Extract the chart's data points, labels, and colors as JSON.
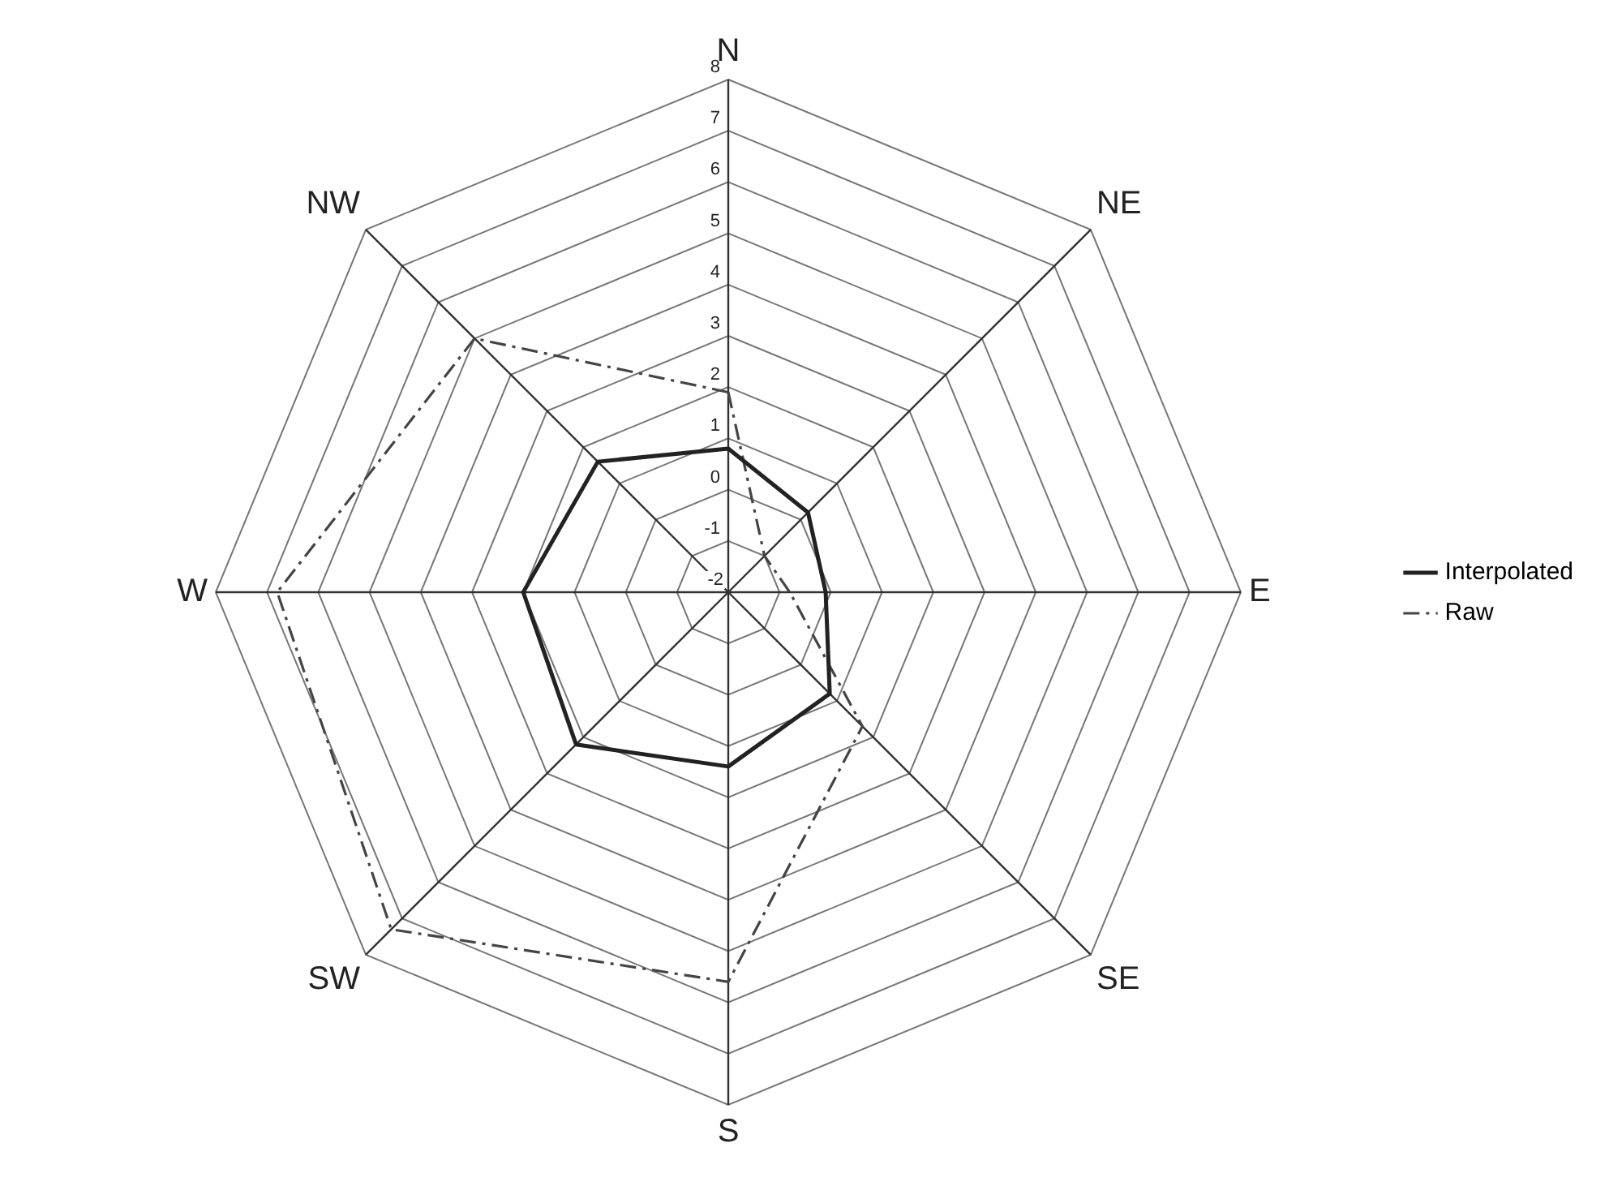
{
  "chart_data": {
    "type": "radar",
    "categories": [
      "N",
      "NE",
      "E",
      "SE",
      "S",
      "SW",
      "W",
      "NW"
    ],
    "series": [
      {
        "name": "Interpolated",
        "color": "#222222",
        "line_style": "solid",
        "values": [
          0.8,
          0.2,
          -0.1,
          0.8,
          1.4,
          2.2,
          2.0,
          1.6
        ]
      },
      {
        "name": "Raw",
        "color": "#444444",
        "line_style": "dashed",
        "values": [
          1.9,
          -1.0,
          -0.8,
          1.7,
          5.6,
          7.3,
          6.8,
          5.0
        ]
      }
    ],
    "ylim": [
      -2,
      8
    ],
    "yticks": [
      -2,
      -1,
      0,
      1,
      2,
      3,
      4,
      5,
      6,
      7,
      8
    ],
    "grid": true,
    "legend": "right",
    "marker": "none"
  }
}
